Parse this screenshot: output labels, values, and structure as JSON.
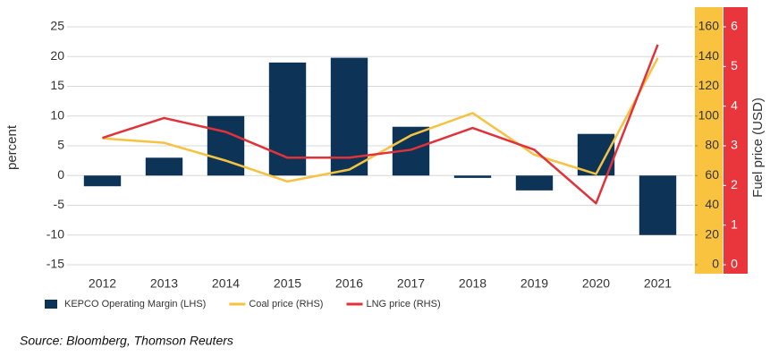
{
  "chart_data": {
    "type": "bar",
    "y_label": "percent",
    "y2_label": "Fuel price (USD)",
    "categories": [
      "2012",
      "2013",
      "2014",
      "2015",
      "2016",
      "2017",
      "2018",
      "2019",
      "2020",
      "2021"
    ],
    "series": [
      {
        "name": "KEPCO Operating Margin (LHS)",
        "type": "bar",
        "axis": "y",
        "color": "#0d3457",
        "values": [
          -1.8,
          3,
          10,
          19,
          19.8,
          8.2,
          -0.4,
          -2.5,
          7,
          -10
        ]
      },
      {
        "name": "Coal price (RHS)",
        "type": "line",
        "axis": "y2",
        "color": "#f5c242",
        "values": [
          85,
          82,
          70,
          56,
          64,
          87,
          102,
          74,
          61,
          139
        ]
      },
      {
        "name": "LNG price (RHS)",
        "type": "line",
        "axis": "y3",
        "color": "#e0323a",
        "values": [
          3.2,
          3.7,
          3.35,
          2.7,
          2.7,
          2.9,
          3.45,
          2.9,
          1.55,
          5.55
        ]
      }
    ],
    "ylim": [
      -15,
      25
    ],
    "yticks": [
      -15,
      -10,
      -5,
      0,
      5,
      10,
      15,
      20,
      25
    ],
    "y2lim": [
      0,
      160
    ],
    "y2ticks": [
      0,
      20,
      40,
      60,
      80,
      100,
      120,
      140,
      160
    ],
    "y3lim": [
      0,
      6
    ],
    "y3ticks": [
      0,
      1,
      2,
      3,
      4,
      5,
      6
    ],
    "grid": true,
    "legend": "bottom",
    "source": "Source: Bloomberg, Thomson Reuters"
  }
}
